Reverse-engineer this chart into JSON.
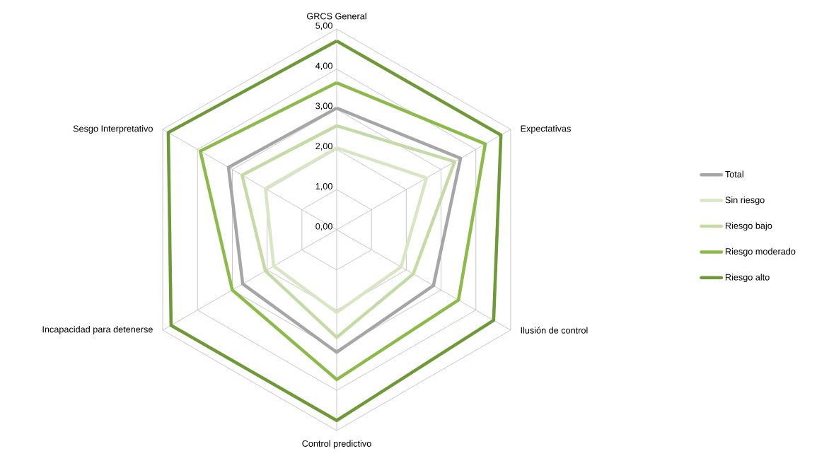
{
  "chart_data": {
    "type": "radar",
    "categories": [
      "GRCS General",
      "Expectativas",
      "Ilusión de control",
      "Control predictivo",
      "Incapacidad para detenerse",
      "Sesgo Interpretativo"
    ],
    "ylim": [
      0,
      5
    ],
    "yticks": [
      {
        "value": 0,
        "label": "0,00"
      },
      {
        "value": 1,
        "label": "1,00"
      },
      {
        "value": 2,
        "label": "2,00"
      },
      {
        "value": 3,
        "label": "3,00"
      },
      {
        "value": 4,
        "label": "4,00"
      },
      {
        "value": 5,
        "label": "5,00"
      }
    ],
    "grid": true,
    "legend": "right",
    "series": [
      {
        "name": "Total",
        "color": "#a6a6a6",
        "values": [
          3.03,
          3.56,
          2.78,
          3.05,
          2.7,
          3.11
        ]
      },
      {
        "name": "Sin riesgo",
        "color": "#d9e6c4",
        "values": [
          2.04,
          2.58,
          1.85,
          2.06,
          1.81,
          2.05
        ]
      },
      {
        "name": "Riesgo bajo",
        "color": "#c5dba5",
        "values": [
          2.59,
          3.39,
          2.2,
          2.68,
          2.05,
          2.72
        ]
      },
      {
        "name": "Riesgo moderado",
        "color": "#8dbb4a",
        "values": [
          3.66,
          4.27,
          3.5,
          3.73,
          3.0,
          3.92
        ]
      },
      {
        "name": "Riesgo alto",
        "color": "#6d9a36",
        "values": [
          4.7,
          4.72,
          4.51,
          4.75,
          4.76,
          4.84
        ]
      }
    ]
  }
}
